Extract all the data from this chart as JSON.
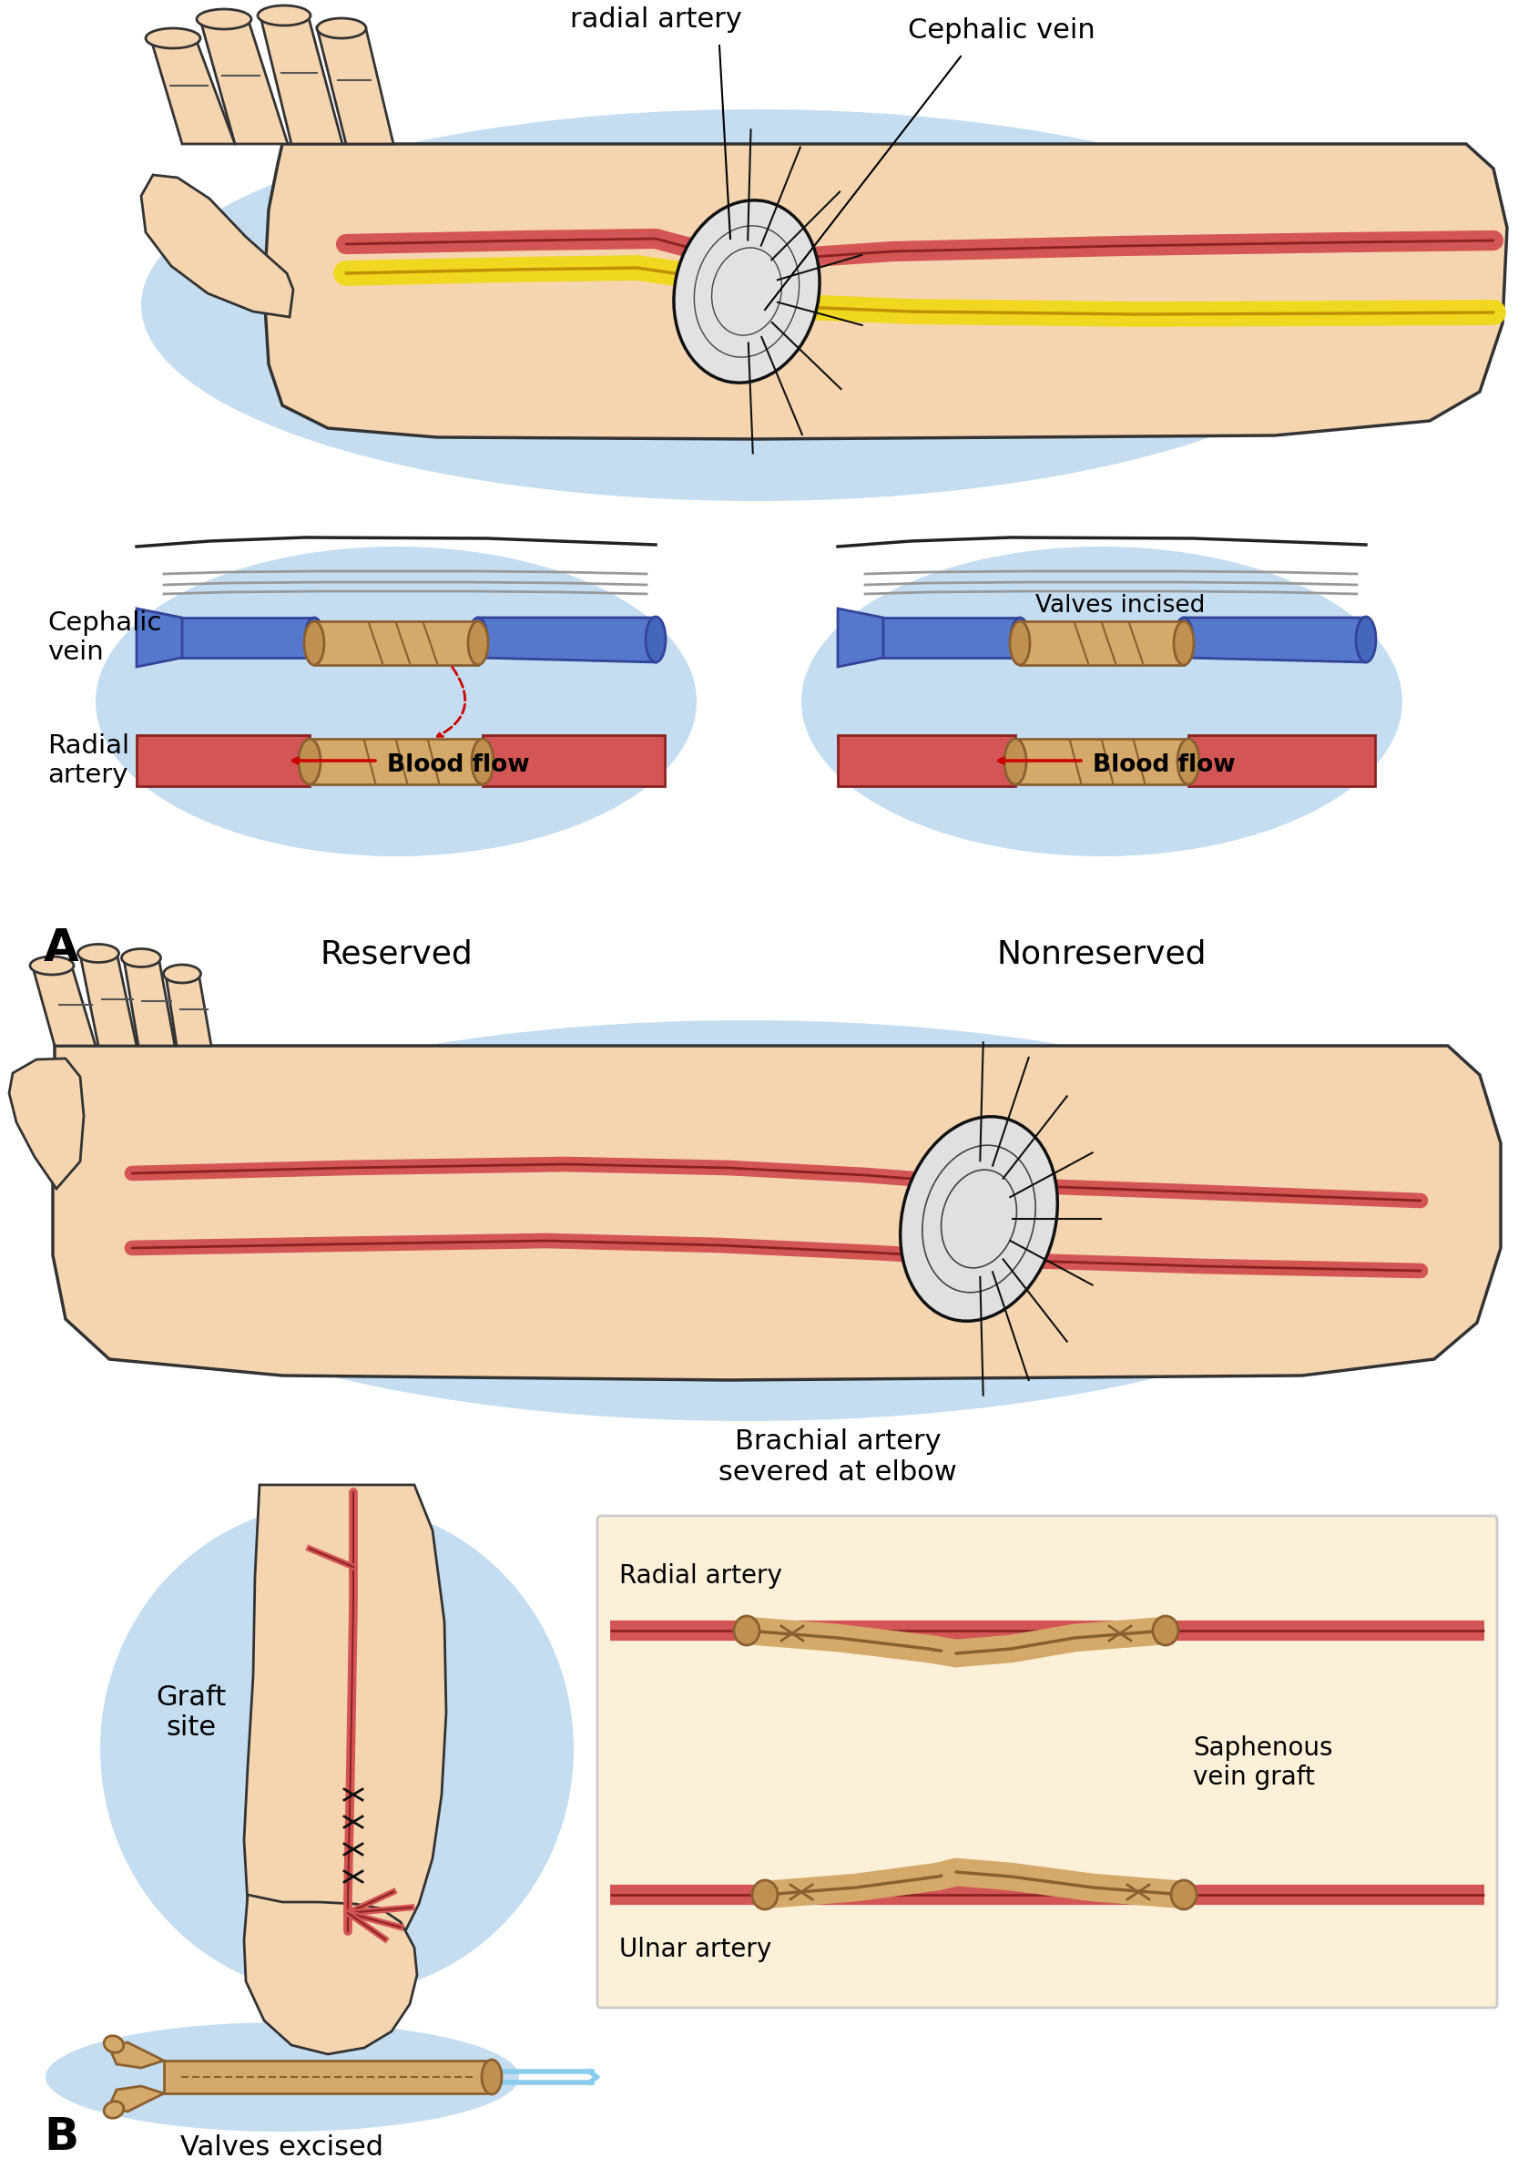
{
  "background_color": "#ffffff",
  "skin_color": "#f5d5b0",
  "skin_dark": "#c8935a",
  "blue_shadow": "#c5ddf0",
  "artery_color": "#d45555",
  "artery_dark": "#8b2222",
  "vein_color": "#5577cc",
  "vein_dark": "#334499",
  "graft_color": "#d4a96a",
  "graft_dark": "#8b6030",
  "yellow_color": "#f0d820",
  "yellow_dark": "#c09000",
  "nerve_color": "#888888",
  "text_color": "#000000",
  "red_arrow": "#cc0000",
  "label_A": "A",
  "label_B": "B",
  "label_reserved": "Reserved",
  "label_nonreserved": "Nonreserved",
  "label_severed_radial": "Severed\nradial artery",
  "label_cephalic_vein_top": "Cephalic vein",
  "label_cephalic_vein_side": "Cephalic\nvein",
  "label_radial_artery_side": "Radial\nartery",
  "label_blood_flow": "Blood flow",
  "label_valves_incised": "Valves incised",
  "label_brachial": "Brachial artery\nsevered at elbow",
  "label_graft_site": "Graft\nsite",
  "label_valves_excised": "Valves excised",
  "label_radial_artery_b": "Radial artery",
  "label_ulnar_artery": "Ulnar artery",
  "label_saphenous": "Saphenous\nvein graft"
}
